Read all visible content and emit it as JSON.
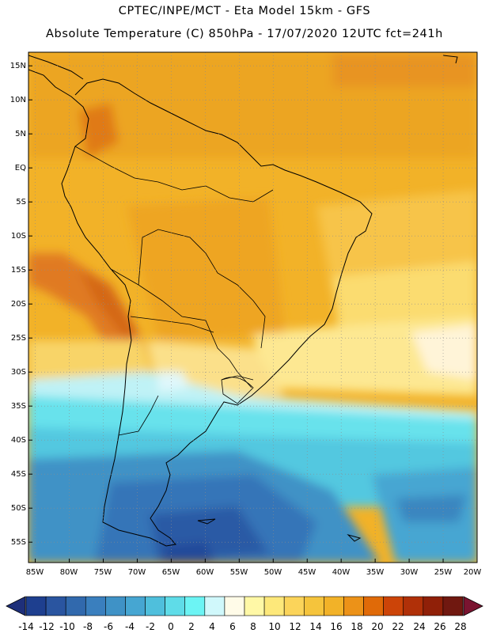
{
  "header": {
    "line1": "CPTEC/INPE/MCT -  Eta Model 15km - GFS",
    "line2": "Absolute Temperature (C) 850hPa - 17/07/2020 12UTC fct=241h"
  },
  "map": {
    "lon_range": [
      -86,
      -20
    ],
    "lat_range": [
      -58,
      17
    ],
    "lat_labels": [
      "15N",
      "10N",
      "5N",
      "EQ",
      "5S",
      "10S",
      "15S",
      "20S",
      "25S",
      "30S",
      "35S",
      "40S",
      "45S",
      "50S",
      "55S"
    ],
    "lon_labels": [
      "85W",
      "80W",
      "75W",
      "70W",
      "65W",
      "60W",
      "55W",
      "50W",
      "45W",
      "40W",
      "35W",
      "30W",
      "25W",
      "20W"
    ],
    "gridlines": "dotted"
  },
  "colorbar": {
    "labels": [
      "-14",
      "-12",
      "-10",
      "-8",
      "-6",
      "-4",
      "-2",
      "0",
      "2",
      "4",
      "6",
      "8",
      "10",
      "12",
      "14",
      "16",
      "18",
      "20",
      "22",
      "24",
      "26",
      "28"
    ],
    "colors": [
      "#1e3f8f",
      "#2a55a0",
      "#3169ad",
      "#3a7fbe",
      "#3f92c6",
      "#46a6d2",
      "#4fbfdc",
      "#5fdce8",
      "#6cf4f4",
      "#d0f8fb",
      "#fffbe8",
      "#fff8a6",
      "#fde87a",
      "#fbd45a",
      "#f5c43c",
      "#f2b228",
      "#ec9218",
      "#e06a08",
      "#cc4408",
      "#b03008",
      "#902008",
      "#701810"
    ],
    "min_color": "#1e2f7a",
    "max_color": "#7a1430"
  }
}
